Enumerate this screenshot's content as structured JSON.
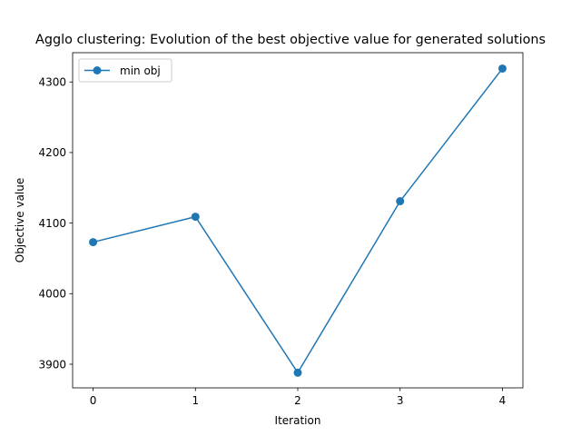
{
  "chart_data": {
    "type": "line",
    "title": "Agglo clustering: Evolution of the best objective value for generated solutions",
    "xlabel": "Iteration",
    "ylabel": "Objective value",
    "x": [
      0,
      1,
      2,
      3,
      4
    ],
    "series": [
      {
        "name": "min obj",
        "values": [
          4073,
          4109,
          3888,
          4131,
          4319
        ],
        "color": "#1f77b4",
        "marker": "circle"
      }
    ],
    "xlim": [
      -0.2,
      4.2
    ],
    "ylim": [
      3866.5,
      4341.5
    ],
    "xticks": [
      0,
      1,
      2,
      3,
      4
    ],
    "yticks": [
      3900,
      4000,
      4100,
      4200,
      4300
    ],
    "grid": false,
    "legend_position": "top-left"
  }
}
